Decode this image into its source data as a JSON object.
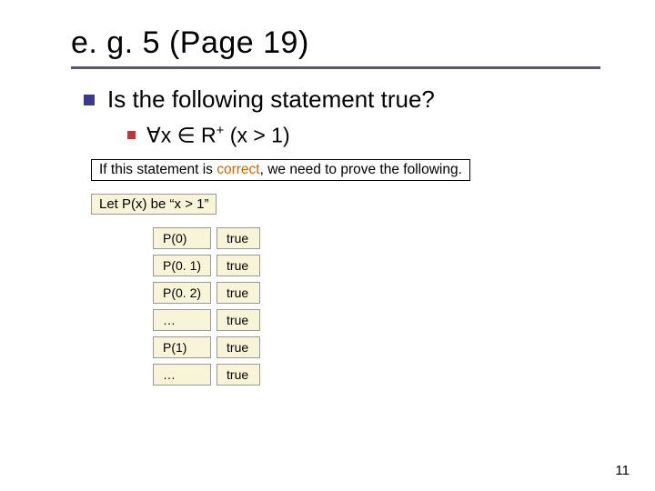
{
  "title": "e. g. 5 (Page 19)",
  "title_rule_color": "#55567a",
  "bullet_color_lvl1": "#3a3a8c",
  "bullet_color_lvl2": "#b83a3a",
  "lvl1_text": "Is the following statement true?",
  "lvl2_prefix": "∀x ∈ R",
  "lvl2_super": "+",
  "lvl2_suffix": " (x > 1)",
  "boxed_prefix": "If this statement is ",
  "boxed_highlight": "correct",
  "boxed_suffix": ", we need to prove the following.",
  "let_text": "Let P(x) be “x > 1”",
  "table": {
    "cell_bg": "#f8f4d8",
    "cell_border": "#999999",
    "rows": [
      {
        "label": "P(0)",
        "val": "true"
      },
      {
        "label": "P(0. 1)",
        "val": "true"
      },
      {
        "label": "P(0. 2)",
        "val": "true"
      },
      {
        "label": "…",
        "val": "true"
      },
      {
        "label": "P(1)",
        "val": "true"
      },
      {
        "label": "…",
        "val": "true"
      }
    ]
  },
  "page_number": "11"
}
